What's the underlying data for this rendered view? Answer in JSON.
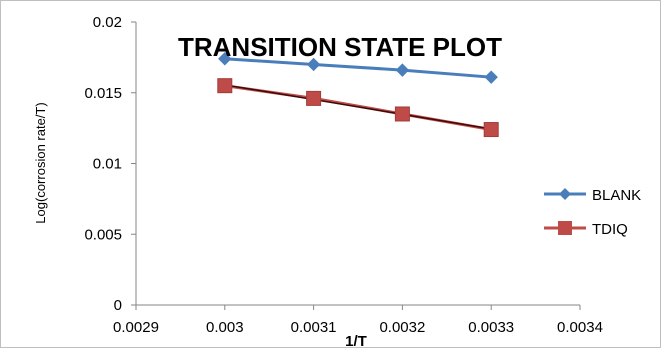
{
  "chart_data": {
    "type": "line",
    "title": "TRANSITION STATE PLOT",
    "xlabel": "1/T",
    "ylabel": "Log(corrosion rate/T)",
    "xlim": [
      0.0029,
      0.0034
    ],
    "ylim": [
      0,
      0.02
    ],
    "x_ticks": [
      "0.0029",
      "0.003",
      "0.0031",
      "0.0032",
      "0.0033",
      "0.0034"
    ],
    "y_ticks": [
      "0",
      "0.005",
      "0.01",
      "0.015",
      "0.02"
    ],
    "grid": false,
    "legend_position": "right",
    "series": [
      {
        "name": "BLANK",
        "color": "#4a7ebb",
        "marker": "diamond",
        "x": [
          0.003,
          0.0031,
          0.0032,
          0.0033
        ],
        "y": [
          0.0174,
          0.017,
          0.0166,
          0.0161
        ]
      },
      {
        "name": "TDIQ",
        "color": "#be4b48",
        "marker": "square",
        "trendline": true,
        "trendline_color": "#3b0a0a",
        "x": [
          0.003,
          0.0031,
          0.0032,
          0.0033
        ],
        "y": [
          0.0155,
          0.0146,
          0.0135,
          0.0124
        ]
      }
    ]
  }
}
